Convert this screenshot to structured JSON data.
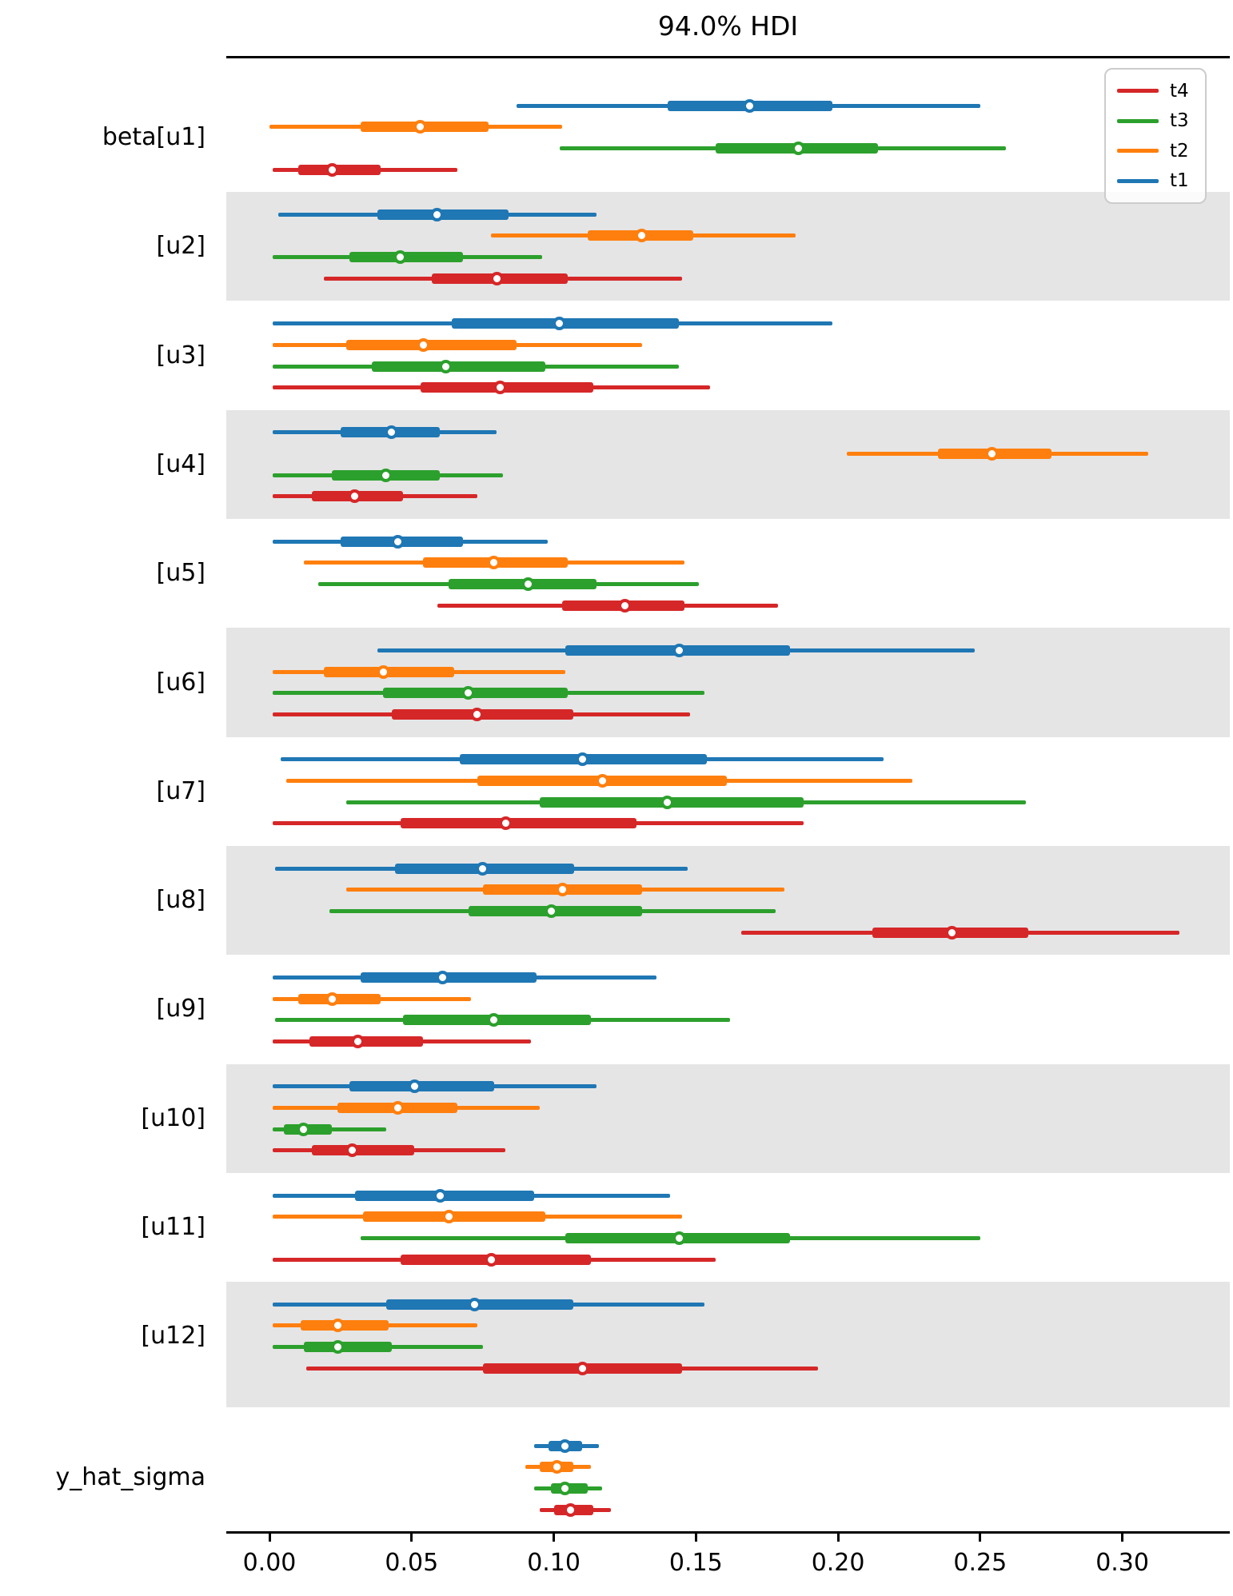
{
  "title": "94.0% HDI",
  "legend": {
    "entries": [
      {
        "label": "t4",
        "color": "#d62728"
      },
      {
        "label": "t3",
        "color": "#2ca02c"
      },
      {
        "label": "t2",
        "color": "#ff7f0e"
      },
      {
        "label": "t1",
        "color": "#1f77b4"
      }
    ]
  },
  "chart_data": {
    "type": "forest",
    "title": "94.0% HDI",
    "xlabel": "",
    "ylabel": "",
    "xlim": [
      -0.0152,
      0.3378
    ],
    "xticks": [
      0.0,
      0.05,
      0.1,
      0.15,
      0.2,
      0.25,
      0.3
    ],
    "xtick_labels": [
      "0.00",
      "0.05",
      "0.10",
      "0.15",
      "0.20",
      "0.25",
      "0.30"
    ],
    "grid": false,
    "legend_position": "upper right",
    "series_order_top_to_bottom": [
      "t1",
      "t2",
      "t3",
      "t4"
    ],
    "colors": {
      "t1": "#1f77b4",
      "t2": "#ff7f0e",
      "t3": "#2ca02c",
      "t4": "#d62728"
    },
    "band_color": "#e5e5e5",
    "interval_format": "[hdi_low, quartile_low, point, quartile_high, hdi_high]",
    "rows": [
      {
        "label": "beta[u1]",
        "shaded": false,
        "bars": [
          {
            "series": "t1",
            "values": [
              0.087,
              0.14,
              0.169,
              0.198,
              0.25
            ]
          },
          {
            "series": "t2",
            "values": [
              0.0,
              0.032,
              0.053,
              0.077,
              0.103
            ]
          },
          {
            "series": "t3",
            "values": [
              0.102,
              0.157,
              0.186,
              0.214,
              0.259
            ]
          },
          {
            "series": "t4",
            "values": [
              0.001,
              0.01,
              0.022,
              0.039,
              0.066
            ]
          }
        ]
      },
      {
        "label": "[u2]",
        "shaded": true,
        "bars": [
          {
            "series": "t1",
            "values": [
              0.003,
              0.038,
              0.059,
              0.084,
              0.115
            ]
          },
          {
            "series": "t2",
            "values": [
              0.078,
              0.112,
              0.131,
              0.149,
              0.185
            ]
          },
          {
            "series": "t3",
            "values": [
              0.001,
              0.028,
              0.046,
              0.068,
              0.096
            ]
          },
          {
            "series": "t4",
            "values": [
              0.019,
              0.057,
              0.08,
              0.105,
              0.145
            ]
          }
        ]
      },
      {
        "label": "[u3]",
        "shaded": false,
        "bars": [
          {
            "series": "t1",
            "values": [
              0.001,
              0.064,
              0.102,
              0.144,
              0.198
            ]
          },
          {
            "series": "t2",
            "values": [
              0.001,
              0.027,
              0.054,
              0.087,
              0.131
            ]
          },
          {
            "series": "t3",
            "values": [
              0.001,
              0.036,
              0.062,
              0.097,
              0.144
            ]
          },
          {
            "series": "t4",
            "values": [
              0.001,
              0.053,
              0.081,
              0.114,
              0.155
            ]
          }
        ]
      },
      {
        "label": "[u4]",
        "shaded": true,
        "bars": [
          {
            "series": "t1",
            "values": [
              0.001,
              0.025,
              0.043,
              0.06,
              0.08
            ]
          },
          {
            "series": "t2",
            "values": [
              0.203,
              0.235,
              0.254,
              0.275,
              0.309
            ]
          },
          {
            "series": "t3",
            "values": [
              0.001,
              0.022,
              0.041,
              0.06,
              0.082
            ]
          },
          {
            "series": "t4",
            "values": [
              0.001,
              0.015,
              0.03,
              0.047,
              0.073
            ]
          }
        ]
      },
      {
        "label": "[u5]",
        "shaded": false,
        "bars": [
          {
            "series": "t1",
            "values": [
              0.001,
              0.025,
              0.045,
              0.068,
              0.098
            ]
          },
          {
            "series": "t2",
            "values": [
              0.012,
              0.054,
              0.079,
              0.105,
              0.146
            ]
          },
          {
            "series": "t3",
            "values": [
              0.017,
              0.063,
              0.091,
              0.115,
              0.151
            ]
          },
          {
            "series": "t4",
            "values": [
              0.059,
              0.103,
              0.125,
              0.146,
              0.179
            ]
          }
        ]
      },
      {
        "label": "[u6]",
        "shaded": true,
        "bars": [
          {
            "series": "t1",
            "values": [
              0.038,
              0.104,
              0.144,
              0.183,
              0.248
            ]
          },
          {
            "series": "t2",
            "values": [
              0.001,
              0.019,
              0.04,
              0.065,
              0.104
            ]
          },
          {
            "series": "t3",
            "values": [
              0.001,
              0.04,
              0.07,
              0.105,
              0.153
            ]
          },
          {
            "series": "t4",
            "values": [
              0.001,
              0.043,
              0.073,
              0.107,
              0.148
            ]
          }
        ]
      },
      {
        "label": "[u7]",
        "shaded": false,
        "bars": [
          {
            "series": "t1",
            "values": [
              0.004,
              0.067,
              0.11,
              0.154,
              0.216
            ]
          },
          {
            "series": "t2",
            "values": [
              0.006,
              0.073,
              0.117,
              0.161,
              0.226
            ]
          },
          {
            "series": "t3",
            "values": [
              0.027,
              0.095,
              0.14,
              0.188,
              0.266
            ]
          },
          {
            "series": "t4",
            "values": [
              0.001,
              0.046,
              0.083,
              0.129,
              0.188
            ]
          }
        ]
      },
      {
        "label": "[u8]",
        "shaded": true,
        "bars": [
          {
            "series": "t1",
            "values": [
              0.002,
              0.044,
              0.075,
              0.107,
              0.147
            ]
          },
          {
            "series": "t2",
            "values": [
              0.027,
              0.075,
              0.103,
              0.131,
              0.181
            ]
          },
          {
            "series": "t3",
            "values": [
              0.021,
              0.07,
              0.099,
              0.131,
              0.178
            ]
          },
          {
            "series": "t4",
            "values": [
              0.166,
              0.212,
              0.24,
              0.267,
              0.32
            ]
          }
        ]
      },
      {
        "label": "[u9]",
        "shaded": false,
        "bars": [
          {
            "series": "t1",
            "values": [
              0.001,
              0.032,
              0.061,
              0.094,
              0.136
            ]
          },
          {
            "series": "t2",
            "values": [
              0.001,
              0.01,
              0.022,
              0.039,
              0.071
            ]
          },
          {
            "series": "t3",
            "values": [
              0.002,
              0.047,
              0.079,
              0.113,
              0.162
            ]
          },
          {
            "series": "t4",
            "values": [
              0.001,
              0.014,
              0.031,
              0.054,
              0.092
            ]
          }
        ]
      },
      {
        "label": "[u10]",
        "shaded": true,
        "bars": [
          {
            "series": "t1",
            "values": [
              0.001,
              0.028,
              0.051,
              0.079,
              0.115
            ]
          },
          {
            "series": "t2",
            "values": [
              0.001,
              0.024,
              0.045,
              0.066,
              0.095
            ]
          },
          {
            "series": "t3",
            "values": [
              0.001,
              0.005,
              0.012,
              0.022,
              0.041
            ]
          },
          {
            "series": "t4",
            "values": [
              0.001,
              0.015,
              0.029,
              0.051,
              0.083
            ]
          }
        ]
      },
      {
        "label": "[u11]",
        "shaded": false,
        "bars": [
          {
            "series": "t1",
            "values": [
              0.001,
              0.03,
              0.06,
              0.093,
              0.141
            ]
          },
          {
            "series": "t2",
            "values": [
              0.001,
              0.033,
              0.063,
              0.097,
              0.145
            ]
          },
          {
            "series": "t3",
            "values": [
              0.032,
              0.104,
              0.144,
              0.183,
              0.25
            ]
          },
          {
            "series": "t4",
            "values": [
              0.001,
              0.046,
              0.078,
              0.113,
              0.157
            ]
          }
        ]
      },
      {
        "label": "[u12]",
        "shaded": true,
        "bars": [
          {
            "series": "t1",
            "values": [
              0.001,
              0.041,
              0.072,
              0.107,
              0.153
            ]
          },
          {
            "series": "t2",
            "values": [
              0.001,
              0.011,
              0.024,
              0.042,
              0.073
            ]
          },
          {
            "series": "t3",
            "values": [
              0.001,
              0.012,
              0.024,
              0.043,
              0.075
            ]
          },
          {
            "series": "t4",
            "values": [
              0.013,
              0.075,
              0.11,
              0.145,
              0.193
            ]
          }
        ]
      },
      {
        "label": "y_hat_sigma",
        "shaded": false,
        "bars": [
          {
            "series": "t1",
            "values": [
              0.093,
              0.098,
              0.104,
              0.11,
              0.116
            ]
          },
          {
            "series": "t2",
            "values": [
              0.09,
              0.095,
              0.101,
              0.107,
              0.113
            ]
          },
          {
            "series": "t3",
            "values": [
              0.093,
              0.099,
              0.104,
              0.112,
              0.117
            ]
          },
          {
            "series": "t4",
            "values": [
              0.095,
              0.1,
              0.106,
              0.114,
              0.12
            ]
          }
        ]
      }
    ]
  }
}
